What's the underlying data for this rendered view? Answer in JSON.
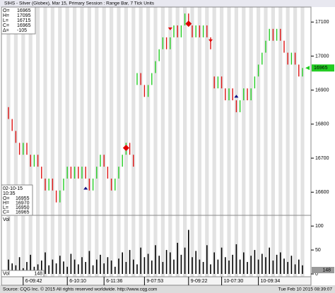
{
  "chart_data": {
    "type": "rangebar",
    "title": "SIHS - Silver (Globex), Mar 15, Primary Session : Range Bar, 7 Tick Units",
    "open": [
      16850,
      16815,
      16780,
      16745,
      16710,
      16745,
      16710,
      16675,
      16710,
      16675,
      16640,
      16605,
      16640,
      16605,
      16570,
      16605,
      16640,
      16675,
      16640,
      16675,
      16640,
      16675,
      16640,
      16605,
      16640,
      16675,
      16710,
      16675,
      16640,
      16605,
      16640,
      16675,
      16710,
      16745,
      16710,
      16915,
      16950,
      16915,
      16880,
      16915,
      16950,
      16985,
      17020,
      17055,
      17020,
      17055,
      17090,
      17055,
      17090,
      17125,
      17090,
      17055,
      17090,
      17055,
      17090,
      17055,
      16940,
      16905,
      16940,
      16905,
      16870,
      16905,
      16870,
      16835,
      16870,
      16905,
      16870,
      16905,
      16940,
      16975,
      17010,
      17045,
      17080,
      17045,
      17080,
      17045,
      17010,
      16975,
      17010,
      16975,
      16940
    ],
    "close": [
      16815,
      16780,
      16745,
      16710,
      16745,
      16710,
      16675,
      16710,
      16675,
      16640,
      16605,
      16640,
      16605,
      16570,
      16605,
      16640,
      16675,
      16640,
      16675,
      16640,
      16675,
      16640,
      16605,
      16640,
      16675,
      16710,
      16675,
      16640,
      16605,
      16640,
      16675,
      16710,
      16745,
      16710,
      16675,
      16950,
      16915,
      16880,
      16915,
      16950,
      16985,
      17020,
      17055,
      17020,
      17055,
      17090,
      17055,
      17090,
      17125,
      17090,
      17055,
      17090,
      17055,
      17090,
      17055,
      17020,
      16905,
      16940,
      16905,
      16870,
      16905,
      16870,
      16835,
      16870,
      16905,
      16870,
      16905,
      16940,
      16975,
      17010,
      17045,
      17080,
      17045,
      17080,
      17045,
      17010,
      16975,
      17010,
      16975,
      16940,
      16965
    ],
    "up_color": "#22cc22",
    "down_color": "#dd1111",
    "ylim": [
      16532,
      17144
    ],
    "yticks": [
      16600,
      16700,
      16800,
      16900,
      17000,
      17100
    ],
    "last_price": 16965,
    "markers": [
      {
        "bar": 32,
        "price": 16730,
        "shape": "diamond",
        "color": "#e00000"
      },
      {
        "bar": 49,
        "price": 17095,
        "shape": "diamond",
        "color": "#e00000"
      },
      {
        "bar": 44,
        "price": 17080,
        "shape": "down",
        "color": "#e00000"
      },
      {
        "bar": 55,
        "price": 17045,
        "shape": "down",
        "color": "#e00000"
      },
      {
        "bar": 21,
        "price": 16612,
        "shape": "up",
        "color": "#000080"
      },
      {
        "bar": 62,
        "price": 16882,
        "shape": "up",
        "color": "#000080"
      }
    ],
    "info_top": [
      {
        "label": "O=",
        "value": 16965
      },
      {
        "label": "H=",
        "value": 17095
      },
      {
        "label": "L=",
        "value": 16715
      },
      {
        "label": "C=",
        "value": 16965
      },
      {
        "label": "Δ=",
        "value": -105
      }
    ],
    "info_bottom": {
      "date": "02-10-15",
      "time": "10:35",
      "rows": [
        {
          "label": "O=",
          "value": 16955
        },
        {
          "label": "H=",
          "value": 16970
        },
        {
          "label": "L=",
          "value": 16950
        },
        {
          "label": "C=",
          "value": 16965
        }
      ]
    },
    "volume_label": "Vol",
    "volume": [
      30,
      22,
      18,
      35,
      12,
      25,
      40,
      15,
      20,
      28,
      45,
      18,
      30,
      22,
      38,
      26,
      15,
      42,
      30,
      20,
      35,
      25,
      48,
      18,
      30,
      40,
      22,
      35,
      28,
      15,
      32,
      45,
      25,
      50,
      30,
      20,
      55,
      35,
      42,
      28,
      60,
      38,
      25,
      50,
      45,
      30,
      65,
      40,
      55,
      92,
      35,
      48,
      30,
      25,
      60,
      20,
      45,
      30,
      55,
      35,
      28,
      40,
      62,
      30,
      45,
      25,
      38,
      50,
      30,
      42,
      35,
      55,
      28,
      40,
      45,
      32,
      25,
      38,
      20,
      30,
      18
    ],
    "volume_current": 148,
    "vlim": [
      0,
      115
    ],
    "vticks": [
      0,
      50,
      100
    ],
    "time_labels": [
      {
        "bar": 4,
        "label": "6-09:42"
      },
      {
        "bar": 16,
        "label": "6-10:10"
      },
      {
        "bar": 26,
        "label": "6-11:36"
      },
      {
        "bar": 37,
        "label": "9-07:53"
      },
      {
        "bar": 49,
        "label": "9-09:22"
      },
      {
        "bar": 58,
        "label": "10-07:30"
      },
      {
        "bar": 68,
        "label": "10-09:34"
      }
    ],
    "source": "Source: CQG Inc. © 2015 All rights reserved worldwide. http://www.cqg.com",
    "timestamp": "Tue Feb 10 2015 08:39:07"
  }
}
